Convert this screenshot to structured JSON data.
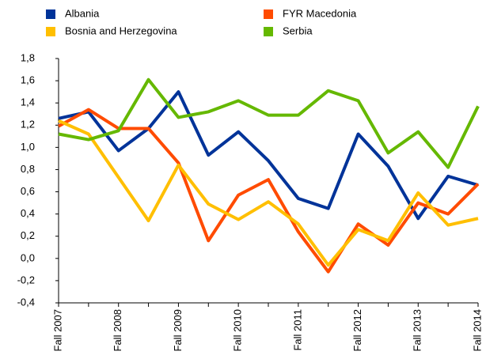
{
  "chart_data": {
    "type": "line",
    "categories": [
      "Fall 2007",
      null,
      "Fall 2008",
      null,
      "Fall 2009",
      null,
      "Fall 2010",
      null,
      "Fall 2011",
      null,
      "Fall 2012",
      null,
      "Fall 2013",
      null,
      "Fall 2014"
    ],
    "series": [
      {
        "name": "Albania",
        "color": "#003399",
        "values": [
          1.26,
          1.32,
          0.97,
          1.17,
          1.5,
          0.93,
          1.14,
          0.88,
          0.54,
          0.45,
          1.12,
          0.83,
          0.36,
          0.74,
          0.66
        ]
      },
      {
        "name": "FYR Macedonia",
        "color": "#ff4b00",
        "values": [
          1.19,
          1.34,
          1.17,
          1.17,
          0.86,
          0.16,
          0.57,
          0.71,
          0.24,
          -0.12,
          0.31,
          0.12,
          0.5,
          0.4,
          0.67
        ]
      },
      {
        "name": "Bosnia and Herzegovina",
        "color": "#ffbf00",
        "values": [
          1.24,
          1.12,
          0.73,
          0.34,
          0.84,
          0.49,
          0.35,
          0.51,
          0.31,
          -0.06,
          0.26,
          0.16,
          0.59,
          0.3,
          0.36
        ]
      },
      {
        "name": "Serbia",
        "color": "#65b800",
        "values": [
          1.12,
          1.07,
          1.15,
          1.61,
          1.27,
          1.32,
          1.42,
          1.29,
          1.29,
          1.51,
          1.42,
          0.95,
          1.14,
          0.82,
          1.37
        ]
      }
    ],
    "ylim": [
      -0.4,
      1.8
    ],
    "yticks": [
      {
        "value": -0.4,
        "label": "-0,4"
      },
      {
        "value": -0.2,
        "label": "-0,2"
      },
      {
        "value": 0,
        "label": "0,0"
      },
      {
        "value": 0.2,
        "label": "0,2"
      },
      {
        "value": 0.4,
        "label": "0,4"
      },
      {
        "value": 0.6,
        "label": "0,6"
      },
      {
        "value": 0.8,
        "label": "0,8"
      },
      {
        "value": 1.0,
        "label": "1,0"
      },
      {
        "value": 1.2,
        "label": "1,2"
      },
      {
        "value": 1.4,
        "label": "1,4"
      },
      {
        "value": 1.6,
        "label": "1,6"
      },
      {
        "value": 1.8,
        "label": "1,8"
      }
    ],
    "grid": false
  }
}
